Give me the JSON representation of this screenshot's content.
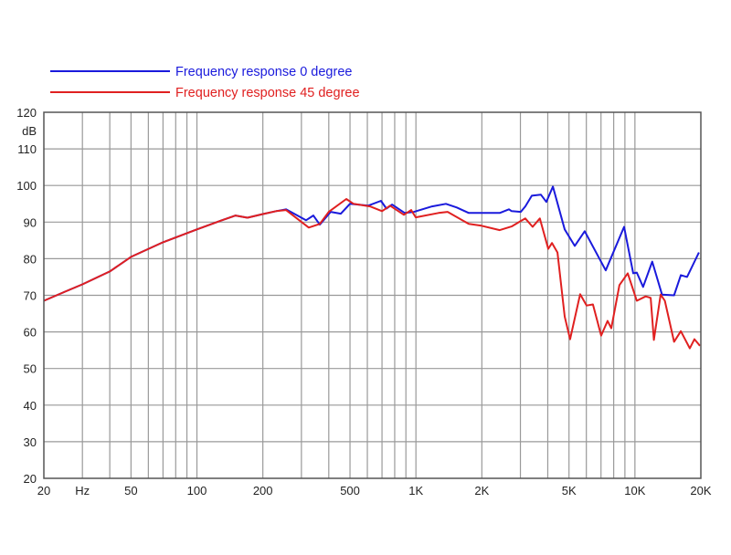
{
  "chart_data": {
    "type": "line",
    "title": "",
    "xlabel": "Hz",
    "ylabel": "dB",
    "xscale": "log",
    "xlim": [
      20,
      20000
    ],
    "ylim": [
      20,
      120
    ],
    "grid": true,
    "legend_position": "top-left",
    "yticks": [
      20,
      30,
      40,
      50,
      60,
      70,
      80,
      90,
      100,
      110,
      120
    ],
    "ytick_labels": [
      "20",
      "30",
      "40",
      "50",
      "60",
      "70",
      "80",
      "90",
      "100",
      "110",
      "120"
    ],
    "xticks": [
      {
        "value": 20,
        "label": "20"
      },
      {
        "value": 30,
        "label": "Hz"
      },
      {
        "value": 50,
        "label": "50"
      },
      {
        "value": 100,
        "label": "100"
      },
      {
        "value": 200,
        "label": "200"
      },
      {
        "value": 500,
        "label": "500"
      },
      {
        "value": 1000,
        "label": "1K"
      },
      {
        "value": 2000,
        "label": "2K"
      },
      {
        "value": 5000,
        "label": "5K"
      },
      {
        "value": 10000,
        "label": "10K"
      },
      {
        "value": 20000,
        "label": "20K"
      }
    ],
    "series": [
      {
        "name": "Frequency response 0 degree",
        "color": "#1a1adc",
        "points": [
          [
            20,
            68.5
          ],
          [
            25,
            71
          ],
          [
            30,
            73
          ],
          [
            40,
            76.5
          ],
          [
            50,
            80.5
          ],
          [
            70,
            84.5
          ],
          [
            100,
            88
          ],
          [
            130,
            90.5
          ],
          [
            150,
            91.8
          ],
          [
            170,
            91.2
          ],
          [
            200,
            92.2
          ],
          [
            230,
            93
          ],
          [
            255,
            93.5
          ],
          [
            315,
            90.5
          ],
          [
            340,
            91.8
          ],
          [
            364,
            89.3
          ],
          [
            408,
            92.8
          ],
          [
            454,
            92.3
          ],
          [
            500,
            95
          ],
          [
            605,
            94.5
          ],
          [
            692,
            95.8
          ],
          [
            733,
            93.7
          ],
          [
            778,
            94.8
          ],
          [
            889,
            92.5
          ],
          [
            980,
            92.8
          ],
          [
            1186,
            94.3
          ],
          [
            1370,
            95
          ],
          [
            1537,
            94
          ],
          [
            1742,
            92.5
          ],
          [
            1991,
            92.5
          ],
          [
            2414,
            92.5
          ],
          [
            2660,
            93.5
          ],
          [
            2736,
            93
          ],
          [
            3010,
            92.8
          ],
          [
            3160,
            94.3
          ],
          [
            3380,
            97.2
          ],
          [
            3720,
            97.5
          ],
          [
            3940,
            95.5
          ],
          [
            4220,
            99.7
          ],
          [
            4780,
            88
          ],
          [
            5310,
            83.5
          ],
          [
            5900,
            87.5
          ],
          [
            7360,
            76.8
          ],
          [
            8920,
            88.7
          ],
          [
            9820,
            76
          ],
          [
            10200,
            76.2
          ],
          [
            10900,
            72.3
          ],
          [
            12000,
            79.2
          ],
          [
            13300,
            70.2
          ],
          [
            15100,
            70
          ],
          [
            16200,
            75.5
          ],
          [
            17300,
            75
          ],
          [
            19600,
            81.7
          ]
        ]
      },
      {
        "name": "Frequency response 45 degree",
        "color": "#e02020",
        "points": [
          [
            20,
            68.5
          ],
          [
            25,
            71
          ],
          [
            30,
            73
          ],
          [
            40,
            76.5
          ],
          [
            50,
            80.5
          ],
          [
            70,
            84.5
          ],
          [
            100,
            88
          ],
          [
            130,
            90.5
          ],
          [
            150,
            91.8
          ],
          [
            170,
            91.2
          ],
          [
            200,
            92.2
          ],
          [
            230,
            93
          ],
          [
            255,
            93.3
          ],
          [
            324,
            88.5
          ],
          [
            364,
            89.5
          ],
          [
            400,
            92.8
          ],
          [
            481,
            96.3
          ],
          [
            519,
            95
          ],
          [
            617,
            94.3
          ],
          [
            700,
            93
          ],
          [
            762,
            94.5
          ],
          [
            881,
            92
          ],
          [
            951,
            93.3
          ],
          [
            998,
            91.3
          ],
          [
            1268,
            92.5
          ],
          [
            1396,
            92.8
          ],
          [
            1742,
            89.5
          ],
          [
            1991,
            89
          ],
          [
            2414,
            87.8
          ],
          [
            2736,
            88.8
          ],
          [
            3010,
            90.3
          ],
          [
            3160,
            91
          ],
          [
            3410,
            88.7
          ],
          [
            3680,
            91
          ],
          [
            4020,
            82.7
          ],
          [
            4180,
            84.3
          ],
          [
            4430,
            81.7
          ],
          [
            4780,
            64.2
          ],
          [
            5060,
            58
          ],
          [
            5620,
            70.3
          ],
          [
            6020,
            67.2
          ],
          [
            6430,
            67.5
          ],
          [
            7010,
            59
          ],
          [
            7500,
            63
          ],
          [
            7800,
            61
          ],
          [
            8500,
            72.8
          ],
          [
            9270,
            76
          ],
          [
            10200,
            68.5
          ],
          [
            11200,
            69.7
          ],
          [
            11800,
            69.3
          ],
          [
            12200,
            57.8
          ],
          [
            13100,
            70.2
          ],
          [
            13700,
            68.5
          ],
          [
            15100,
            57.3
          ],
          [
            16200,
            60.2
          ],
          [
            17800,
            55.5
          ],
          [
            18700,
            58
          ],
          [
            19800,
            56.2
          ]
        ]
      }
    ]
  }
}
